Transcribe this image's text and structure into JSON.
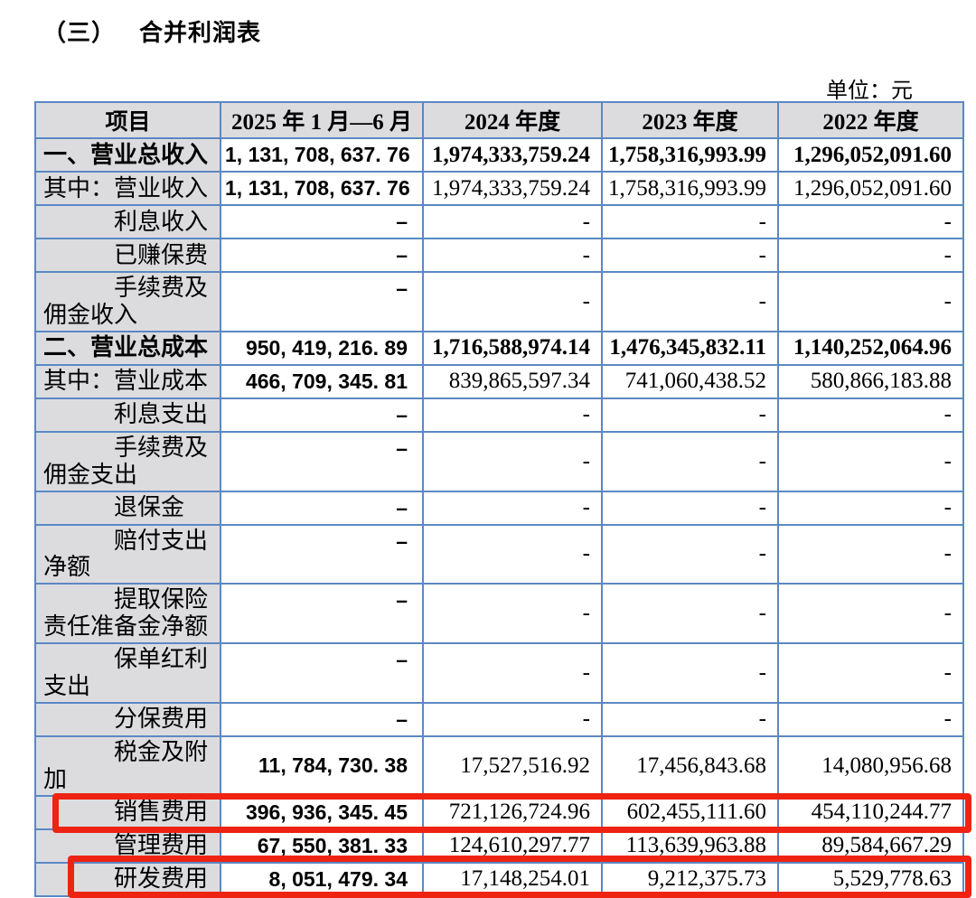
{
  "page": {
    "section_number": "（三）",
    "section_title": "合并利润表",
    "unit_label": "单位：元"
  },
  "table": {
    "em_dash": "–",
    "columns": [
      "项目",
      "2025 年 1 月—6 月",
      "2024 年度",
      "2023 年度",
      "2022 年度"
    ],
    "rows": [
      {
        "label": "一、营业总收入",
        "style": "section",
        "multiline": false,
        "highlighted": false,
        "values": [
          "1, 131, 708, 637. 76",
          "1,974,333,759.24",
          "1,758,316,993.99",
          "1,296,052,091.60"
        ]
      },
      {
        "label": "其中：营业收入",
        "style": "flush",
        "multiline": false,
        "highlighted": false,
        "values": [
          "1, 131, 708, 637. 76",
          "1,974,333,759.24",
          "1,758,316,993.99",
          "1,296,052,091.60"
        ]
      },
      {
        "label": "利息收入",
        "style": "indent",
        "multiline": false,
        "highlighted": false,
        "values": [
          "–",
          "-",
          "-",
          "-"
        ]
      },
      {
        "label": "已赚保费",
        "style": "indent",
        "multiline": false,
        "highlighted": false,
        "values": [
          "–",
          "-",
          "-",
          "-"
        ]
      },
      {
        "label": "手续费及佣金收入",
        "style": "indent",
        "multiline": true,
        "highlighted": false,
        "values": [
          "–",
          "-",
          "-",
          "-"
        ]
      },
      {
        "label": "二、营业总成本",
        "style": "section",
        "multiline": false,
        "highlighted": false,
        "values": [
          "950, 419, 216. 89",
          "1,716,588,974.14",
          "1,476,345,832.11",
          "1,140,252,064.96"
        ]
      },
      {
        "label": "其中：营业成本",
        "style": "flush",
        "multiline": false,
        "highlighted": false,
        "values": [
          "466, 709, 345. 81",
          "839,865,597.34",
          "741,060,438.52",
          "580,866,183.88"
        ]
      },
      {
        "label": "利息支出",
        "style": "indent",
        "multiline": false,
        "highlighted": false,
        "values": [
          "–",
          "-",
          "-",
          "-"
        ]
      },
      {
        "label": "手续费及佣金支出",
        "style": "indent",
        "multiline": true,
        "highlighted": false,
        "values": [
          "–",
          "-",
          "-",
          "-"
        ]
      },
      {
        "label": "退保金",
        "style": "indent",
        "multiline": false,
        "highlighted": false,
        "values": [
          "–",
          "-",
          "-",
          "-"
        ]
      },
      {
        "label": "赔付支出净额",
        "style": "indent",
        "multiline": true,
        "highlighted": false,
        "values": [
          "–",
          "-",
          "-",
          "-"
        ]
      },
      {
        "label": "提取保险责任准备金净额",
        "style": "indent",
        "multiline": true,
        "highlighted": false,
        "values": [
          "–",
          "-",
          "-",
          "-"
        ]
      },
      {
        "label": "保单红利支出",
        "style": "indent",
        "multiline": true,
        "highlighted": false,
        "values": [
          "–",
          "-",
          "-",
          "-"
        ]
      },
      {
        "label": "分保费用",
        "style": "indent",
        "multiline": false,
        "highlighted": false,
        "values": [
          "–",
          "-",
          "-",
          "-"
        ]
      },
      {
        "label": "税金及附加",
        "style": "indent",
        "multiline": true,
        "highlighted": false,
        "values": [
          "11, 784, 730. 38",
          "17,527,516.92",
          "17,456,843.68",
          "14,080,956.68"
        ]
      },
      {
        "label": "销售费用",
        "style": "indent",
        "multiline": false,
        "highlighted": true,
        "values": [
          "396, 936, 345. 45",
          "721,126,724.96",
          "602,455,111.60",
          "454,110,244.77"
        ]
      },
      {
        "label": "管理费用",
        "style": "indent",
        "multiline": false,
        "highlighted": false,
        "values": [
          "67, 550, 381. 33",
          "124,610,297.77",
          "113,639,963.88",
          "89,584,667.29"
        ]
      },
      {
        "label": "研发费用",
        "style": "indent",
        "multiline": false,
        "highlighted": true,
        "values": [
          "8, 051, 479. 34",
          "17,148,254.01",
          "9,212,375.73",
          "5,529,778.63"
        ]
      }
    ],
    "colors": {
      "border": "#5b88c4",
      "header_bg": "#dcdcdf",
      "highlight": "#ee2312"
    }
  }
}
